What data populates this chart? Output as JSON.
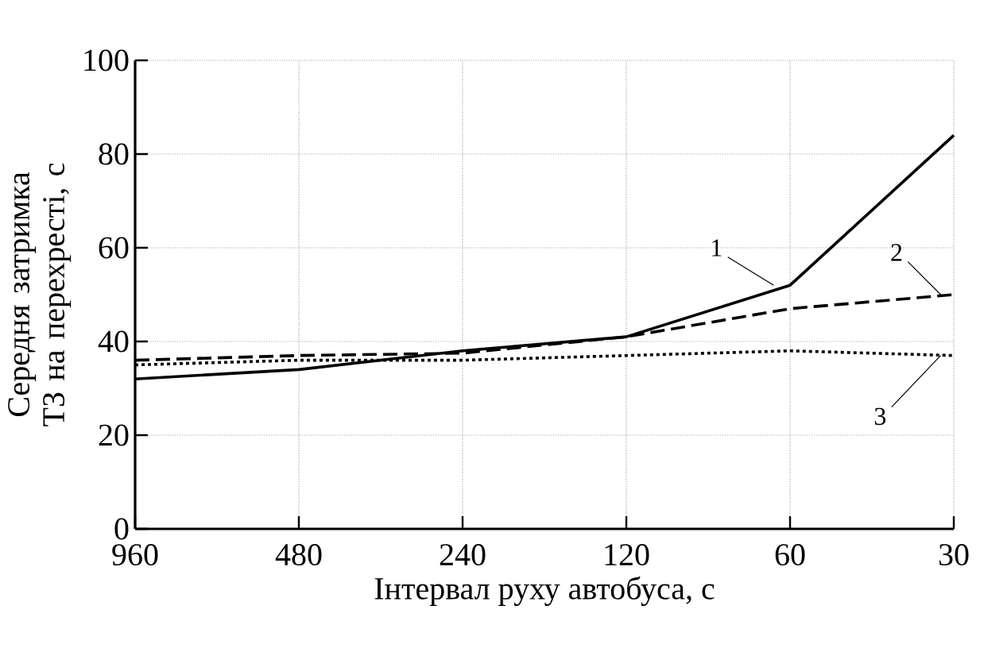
{
  "chart_data": {
    "type": "line",
    "xlabel": "Інтервал руху автобуса, с",
    "ylabel": "Середня затримка ТЗ на перехресті, с",
    "categories": [
      "960",
      "480",
      "240",
      "120",
      "60",
      "30"
    ],
    "series": [
      {
        "color": "#000000",
        "line_style": "solid",
        "values": [
          32,
          34,
          38,
          41,
          52,
          84
        ]
      },
      {
        "color": "#000000",
        "line_style": "dashed",
        "values": [
          36,
          37,
          37.5,
          41,
          47,
          50
        ]
      },
      {
        "color": "#000000",
        "line_style": "dotted",
        "values": [
          35,
          36,
          36,
          37,
          38,
          37
        ]
      }
    ],
    "ylim": [
      0,
      100
    ],
    "yticks": [
      0,
      20,
      40,
      60,
      80,
      100
    ],
    "grid": true,
    "marker": "none",
    "annotations": [
      {
        "text": "1",
        "x": "60",
        "y": 52
      },
      {
        "text": "2",
        "x": "30",
        "y": 50
      },
      {
        "text": "3",
        "x": "30",
        "y": 37
      }
    ]
  }
}
